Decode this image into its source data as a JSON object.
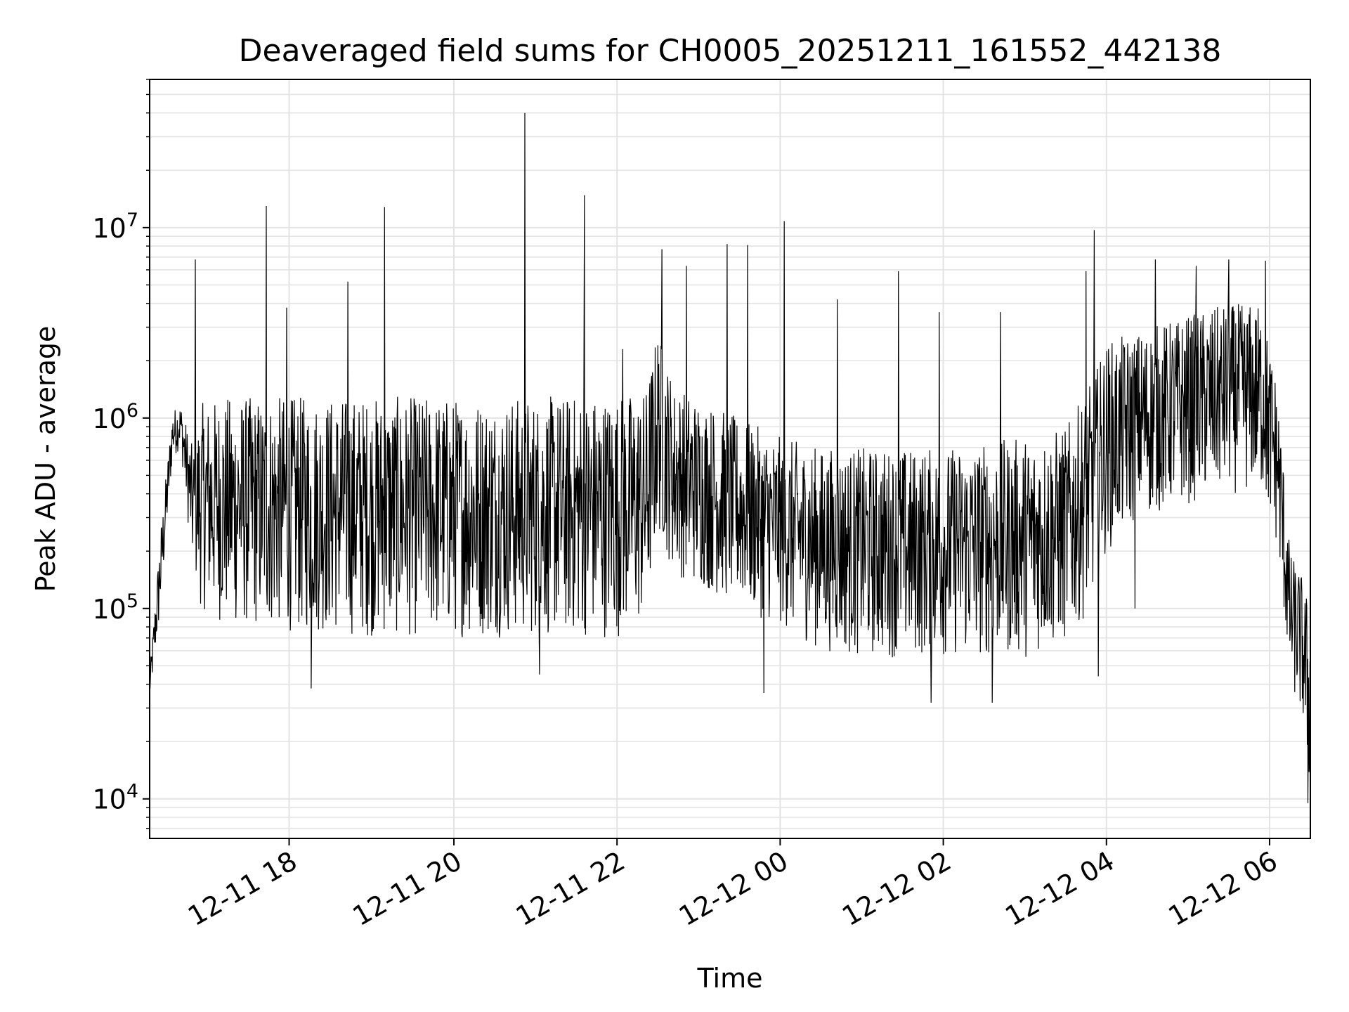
{
  "chart_data": {
    "type": "line",
    "title": "Deaveraged field sums for CH0005_20251211_161552_442138",
    "xlabel": "Time",
    "ylabel": "Peak ADU - average",
    "yscale": "log",
    "ylim": [
      6200,
      60000000
    ],
    "xlim_hours": [
      16.27,
      30.5
    ],
    "grid": true,
    "grid_which": "both",
    "line_color": "#000000",
    "x_ticks": [
      {
        "hour": 17.98,
        "label": "12-11 18"
      },
      {
        "hour": 20.0,
        "label": "12-11 20"
      },
      {
        "hour": 22.0,
        "label": "12-11 22"
      },
      {
        "hour": 24.0,
        "label": "12-12 00"
      },
      {
        "hour": 26.0,
        "label": "12-12 02"
      },
      {
        "hour": 28.0,
        "label": "12-12 04"
      },
      {
        "hour": 30.0,
        "label": "12-12 06"
      }
    ],
    "y_ticks": [
      {
        "value": 10000,
        "base": "10",
        "exp": "4"
      },
      {
        "value": 100000,
        "base": "10",
        "exp": "5"
      },
      {
        "value": 1000000,
        "base": "10",
        "exp": "6"
      },
      {
        "value": 10000000,
        "base": "10",
        "exp": "7"
      }
    ],
    "series": [
      {
        "name": "Deaveraged field sum",
        "envelope": {
          "hours": [
            16.27,
            16.4,
            16.55,
            16.65,
            16.8,
            16.9,
            17.2,
            18.0,
            19.0,
            20.0,
            21.0,
            22.0,
            22.35,
            22.5,
            22.7,
            23.5,
            24.0,
            24.5,
            25.0,
            26.0,
            27.0,
            27.5,
            27.8,
            28.0,
            28.5,
            29.0,
            29.5,
            29.9,
            30.1,
            30.25,
            30.4,
            30.5
          ],
          "low": [
            32000,
            90000,
            600000,
            700000,
            150000,
            100000,
            80000,
            75000,
            70000,
            70000,
            70000,
            70000,
            80000,
            250000,
            150000,
            100000,
            80000,
            60000,
            55000,
            55000,
            55000,
            65000,
            100000,
            200000,
            300000,
            350000,
            400000,
            400000,
            200000,
            40000,
            25000,
            9500
          ],
          "high": [
            45000,
            250000,
            1100000,
            1200000,
            700000,
            1200000,
            1300000,
            1300000,
            1300000,
            1300000,
            1300000,
            1350000,
            1400000,
            3000000,
            1500000,
            1000000,
            800000,
            700000,
            700000,
            700000,
            800000,
            900000,
            1500000,
            2500000,
            3000000,
            3500000,
            4000000,
            4000000,
            1500000,
            200000,
            150000,
            100000
          ]
        },
        "spikes": [
          {
            "hour": 16.83,
            "value": 6800000
          },
          {
            "hour": 17.7,
            "value": 13000000
          },
          {
            "hour": 17.95,
            "value": 3800000
          },
          {
            "hour": 18.7,
            "value": 5200000
          },
          {
            "hour": 19.15,
            "value": 12800000
          },
          {
            "hour": 20.87,
            "value": 40000000
          },
          {
            "hour": 21.6,
            "value": 14800000
          },
          {
            "hour": 22.07,
            "value": 2300000
          },
          {
            "hour": 22.55,
            "value": 7700000
          },
          {
            "hour": 22.85,
            "value": 6300000
          },
          {
            "hour": 23.35,
            "value": 8200000
          },
          {
            "hour": 23.6,
            "value": 8100000
          },
          {
            "hour": 24.05,
            "value": 10800000
          },
          {
            "hour": 24.7,
            "value": 4200000
          },
          {
            "hour": 25.45,
            "value": 5900000
          },
          {
            "hour": 25.95,
            "value": 3600000
          },
          {
            "hour": 26.7,
            "value": 3600000
          },
          {
            "hour": 27.75,
            "value": 5900000
          },
          {
            "hour": 27.85,
            "value": 9700000
          },
          {
            "hour": 28.6,
            "value": 6800000
          },
          {
            "hour": 29.1,
            "value": 6300000
          },
          {
            "hour": 29.5,
            "value": 6800000
          },
          {
            "hour": 29.95,
            "value": 6700000
          }
        ],
        "dips": [
          {
            "hour": 18.25,
            "value": 38000
          },
          {
            "hour": 21.05,
            "value": 45000
          },
          {
            "hour": 23.8,
            "value": 36000
          },
          {
            "hour": 25.85,
            "value": 32000
          },
          {
            "hour": 26.6,
            "value": 32000
          },
          {
            "hour": 27.9,
            "value": 44000
          },
          {
            "hour": 28.35,
            "value": 100000
          },
          {
            "hour": 30.47,
            "value": 9500
          }
        ]
      }
    ]
  }
}
